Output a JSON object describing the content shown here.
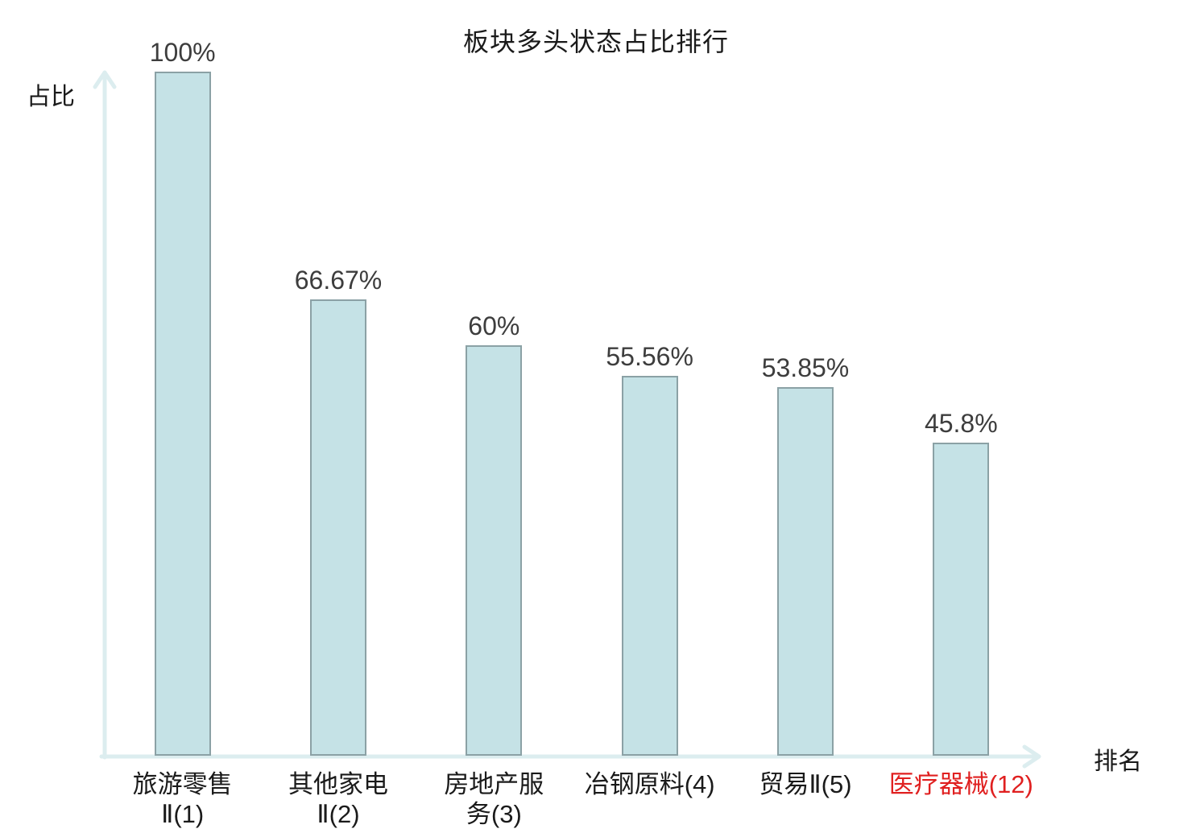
{
  "title": "板块多头状态占比排行",
  "y_axis_label": "占比",
  "x_axis_label": "排名",
  "colors": {
    "bar_fill": "#c5e2e6",
    "bar_border": "#8ba1a5",
    "axis": "#dcedef",
    "title_text": "#1a1a1a",
    "value_text": "#3d3d3d",
    "category_text": "#1a1a1a",
    "highlight_text": "#e02020"
  },
  "chart_data": {
    "type": "bar",
    "title": "板块多头状态占比排行",
    "xlabel": "排名",
    "ylabel": "占比",
    "ylim": [
      0,
      100
    ],
    "grid": false,
    "legend": null,
    "categories": [
      "旅游零售Ⅱ(1)",
      "其他家电Ⅱ(2)",
      "房地产服务(3)",
      "冶钢原料(4)",
      "贸易Ⅱ(5)",
      "医疗器械(12)"
    ],
    "category_display": [
      "旅游零售\nⅡ(1)",
      "其他家电\nⅡ(2)",
      "房地产服\n务(3)",
      "冶钢原料(4)",
      "贸易Ⅱ(5)",
      "医疗器械(12)"
    ],
    "values": [
      100,
      66.67,
      60,
      55.56,
      53.85,
      45.8
    ],
    "value_labels": [
      "100%",
      "66.67%",
      "60%",
      "55.56%",
      "53.85%",
      "45.8%"
    ],
    "highlighted_category_index": 5
  }
}
